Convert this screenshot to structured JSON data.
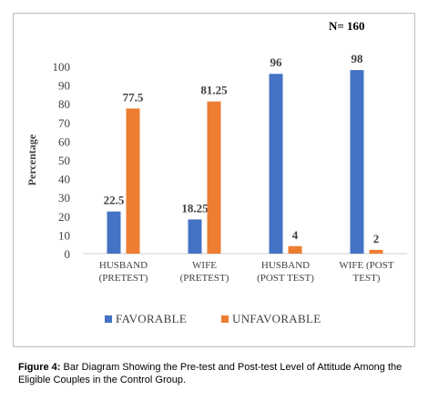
{
  "chart_data": {
    "type": "bar",
    "annotation": "N= 160",
    "ylabel": "Percentage",
    "ylim": [
      0,
      100
    ],
    "yticks": [
      0,
      10,
      20,
      30,
      40,
      50,
      60,
      70,
      80,
      90,
      100
    ],
    "grid": false,
    "legend": "bottom",
    "categories": [
      [
        "HUSBAND",
        "(PRETEST)"
      ],
      [
        "WIFE",
        "(PRETEST)"
      ],
      [
        "HUSBAND",
        "(POST TEST)"
      ],
      [
        "WIFE (POST",
        "TEST)"
      ]
    ],
    "series": [
      {
        "name": "FAVORABLE",
        "color": "#4472C4",
        "values": [
          22.5,
          18.25,
          96,
          98
        ],
        "labels": [
          "22.5",
          "18.25",
          "96",
          "98"
        ]
      },
      {
        "name": "UNFAVORABLE",
        "color": "#ED7D31",
        "values": [
          77.5,
          81.25,
          4,
          2
        ],
        "labels": [
          "77.5",
          "81.25",
          "4",
          "2"
        ]
      }
    ]
  },
  "caption": {
    "label": "Figure 4:",
    "text": " Bar Diagram Showing the Pre-test and Post-test Level of Attitude Among the Eligible Couples in the Control Group."
  }
}
